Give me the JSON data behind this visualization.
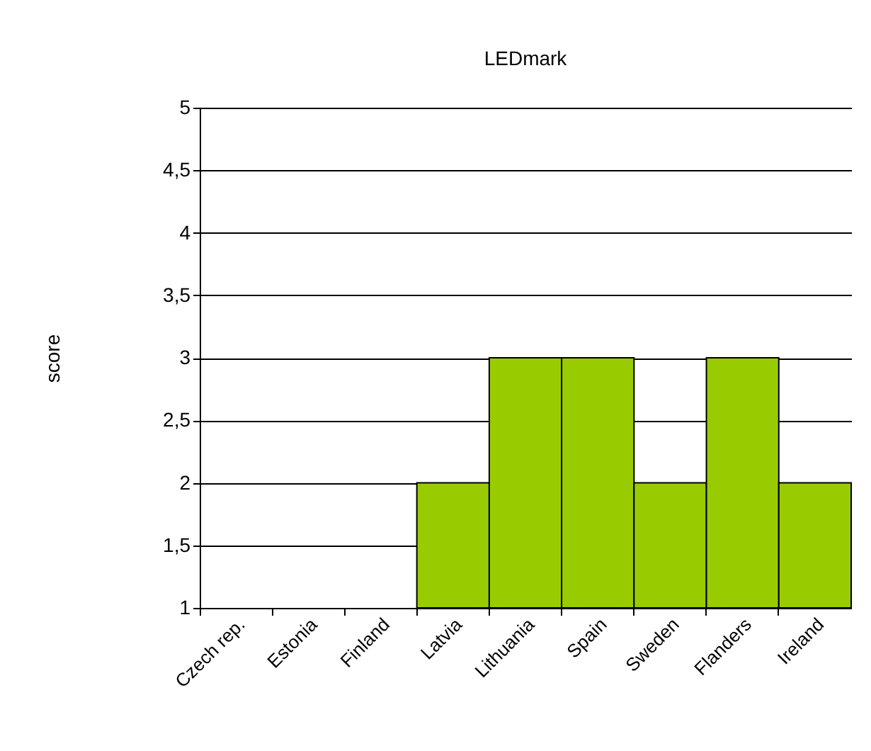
{
  "chart_data": {
    "type": "bar",
    "title": "LEDmark",
    "ylabel": "score",
    "categories": [
      "Czech rep.",
      "Estonia",
      "Finland",
      "Latvia",
      "Lithuania",
      "Spain",
      "Sweden",
      "Flanders",
      "Ireland"
    ],
    "values": [
      null,
      null,
      null,
      2,
      3,
      3,
      2,
      3,
      2
    ],
    "color": "#99cc00",
    "ylim": [
      1,
      5
    ],
    "yticks": [
      1,
      {
        "value": 1.5,
        "label": "1,5"
      },
      2,
      {
        "value": 2.5,
        "label": "2,5"
      },
      3,
      {
        "value": 3.5,
        "label": "3,5"
      },
      4,
      {
        "value": 4.5,
        "label": "4,5"
      },
      5
    ],
    "grid": "y"
  }
}
